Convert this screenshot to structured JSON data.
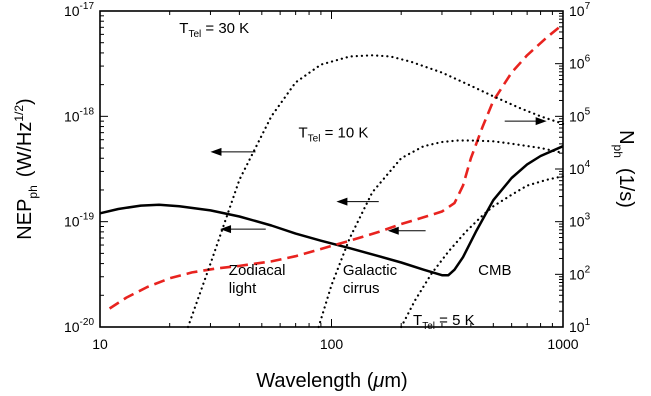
{
  "chart_data": {
    "type": "line",
    "title": "",
    "xlabel": {
      "main": "Wavelength (",
      "mu": "μ",
      "unit": "m)"
    },
    "ylabel_left": {
      "main": "NEP",
      "sub": "ph",
      "unit": "(W/Hz",
      "exp": "1/2",
      "close": ")"
    },
    "ylabel_right": {
      "main": "N",
      "sub": "ph",
      "unit": "(1/s)"
    },
    "x_scale": "log",
    "y_scale": "log",
    "xlim": [
      10,
      1000
    ],
    "ylim_left": [
      1e-20,
      1e-17
    ],
    "ylim_right": [
      10,
      10000000
    ],
    "grid": false,
    "x_ticks": [
      {
        "value": 10,
        "label": "10"
      },
      {
        "value": 100,
        "label": "100"
      },
      {
        "value": 1000,
        "label": "1000"
      }
    ],
    "y_ticks_left": [
      {
        "value": 1e-20,
        "base": "10",
        "exp": "-20"
      },
      {
        "value": 1e-19,
        "base": "10",
        "exp": "-19"
      },
      {
        "value": 1e-18,
        "base": "10",
        "exp": "-18"
      },
      {
        "value": 1e-17,
        "base": "10",
        "exp": "-17"
      }
    ],
    "y_ticks_right": [
      {
        "value": 10,
        "base": "10",
        "exp": "1"
      },
      {
        "value": 100,
        "base": "10",
        "exp": "2"
      },
      {
        "value": 1000,
        "base": "10",
        "exp": "3"
      },
      {
        "value": 10000,
        "base": "10",
        "exp": "4"
      },
      {
        "value": 100000,
        "base": "10",
        "exp": "5"
      },
      {
        "value": 1000000,
        "base": "10",
        "exp": "6"
      },
      {
        "value": 10000000,
        "base": "10",
        "exp": "7"
      }
    ],
    "series": [
      {
        "axis": "left",
        "style": "solid",
        "color": "#000000",
        "x": [
          10,
          12,
          15,
          18,
          22,
          30,
          40,
          55,
          70,
          90,
          120,
          160,
          200,
          250,
          300,
          320,
          340,
          370,
          420,
          500,
          600,
          700,
          800,
          1000
        ],
        "y": [
          1.2e-19,
          1.32e-19,
          1.42e-19,
          1.45e-19,
          1.4e-19,
          1.28e-19,
          1.12e-19,
          9.2e-20,
          7.7e-20,
          6.6e-20,
          5.6e-20,
          4.7e-20,
          4.1e-20,
          3.5e-20,
          3.1e-20,
          3.1e-20,
          3.5e-20,
          4.6e-20,
          8e-20,
          1.6e-19,
          2.6e-19,
          3.5e-19,
          4.2e-19,
          5.2e-19
        ]
      },
      {
        "axis": "left",
        "style": "dashed",
        "color": "#e8231f",
        "x": [
          11,
          13,
          16,
          20,
          25,
          32,
          40,
          55,
          70,
          90,
          120,
          160,
          200,
          250,
          300,
          340,
          370,
          400,
          450,
          500,
          600,
          700,
          850,
          1000
        ],
        "y": [
          1.5e-20,
          1.9e-20,
          2.4e-20,
          2.9e-20,
          3.3e-20,
          3.6e-20,
          3.8e-20,
          4.2e-20,
          4.7e-20,
          5.5e-20,
          6.6e-20,
          8e-20,
          9.5e-20,
          1.1e-19,
          1.25e-19,
          1.5e-19,
          2.2e-19,
          4e-19,
          8e-19,
          1.4e-18,
          2.6e-18,
          3.8e-18,
          5.6e-18,
          7.5e-18
        ]
      },
      {
        "axis": "left",
        "style": "dotted",
        "color": "#000000",
        "x": [
          24,
          30,
          40,
          55,
          70,
          90,
          120,
          150,
          180,
          220,
          300,
          400,
          500,
          650,
          800,
          1000
        ],
        "y": [
          1e-20,
          4e-20,
          2.5e-19,
          1e-18,
          2.1e-18,
          3.1e-18,
          3.7e-18,
          3.8e-18,
          3.7e-18,
          3.3e-18,
          2.6e-18,
          1.95e-18,
          1.55e-18,
          1.2e-18,
          1e-18,
          8.5e-19
        ]
      },
      {
        "axis": "left",
        "style": "dotted",
        "color": "#000000",
        "x": [
          88,
          100,
          120,
          150,
          200,
          250,
          300,
          350,
          400,
          500,
          600,
          800,
          1000
        ],
        "y": [
          1e-20,
          2.5e-20,
          7e-20,
          1.9e-19,
          4e-19,
          5.2e-19,
          5.7e-19,
          5.9e-19,
          5.9e-19,
          5.8e-19,
          5.5e-19,
          5e-19,
          4.5e-19
        ]
      },
      {
        "axis": "left",
        "style": "dotted",
        "color": "#000000",
        "x": [
          200,
          230,
          270,
          320,
          380,
          450,
          500,
          600,
          700,
          850,
          1000
        ],
        "y": [
          1e-20,
          1.8e-20,
          3.2e-20,
          5.2e-20,
          8e-20,
          1.15e-19,
          1.4e-19,
          1.8e-19,
          2.2e-19,
          2.5e-19,
          2.7e-19
        ]
      }
    ],
    "arrows": [
      {
        "x_from": 47,
        "x_to": 30,
        "y": 4.6e-19
      },
      {
        "x_from": 160,
        "x_to": 105,
        "y": 1.55e-19
      },
      {
        "x_from": 52,
        "x_to": 33,
        "y": 8.5e-20
      },
      {
        "x_from": 255,
        "x_to": 175,
        "y": 8.2e-20
      },
      {
        "x_from": 560,
        "x_to": 850,
        "y": 9e-19
      }
    ],
    "annotations": [
      {
        "lines": [
          "Zodiacal",
          "light"
        ],
        "x": 36,
        "y": 3.1e-20
      },
      {
        "lines": [
          "Galactic",
          "cirrus"
        ],
        "x": 112,
        "y": 3.1e-20
      },
      {
        "lines": [
          "CMB"
        ],
        "x": 430,
        "y": 3.1e-20
      }
    ],
    "temp_labels": [
      {
        "pre": "T",
        "sub": "Tel",
        "post": " = 30 K",
        "x": 22,
        "y": 6.2e-18
      },
      {
        "pre": "T",
        "sub": "Tel",
        "post": " = 10 K",
        "x": 72,
        "y": 6.3e-19
      },
      {
        "pre": "T",
        "sub": "Tel",
        "post": " = 5 K",
        "x": 225,
        "y": 1.05e-20
      }
    ]
  }
}
